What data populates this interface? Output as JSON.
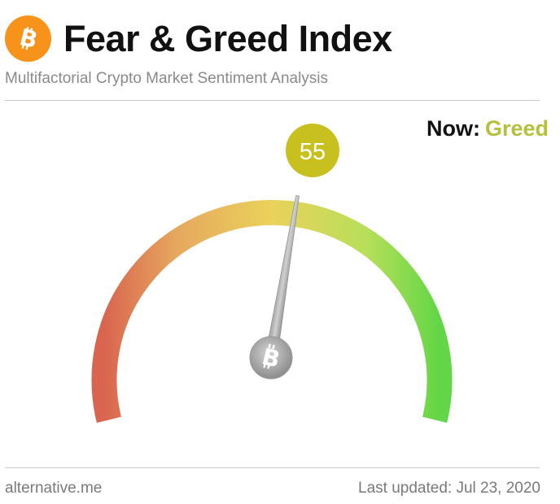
{
  "header": {
    "title": "Fear & Greed Index",
    "subtitle": "Multifactorial Crypto Market Sentiment Analysis",
    "logo_icon": "bitcoin-icon",
    "logo_color": "#f7931a"
  },
  "status": {
    "now_label": "Now:",
    "classification": "Greed",
    "classification_color": "#b5c13a"
  },
  "gauge": {
    "value": 55,
    "min": 0,
    "max": 100,
    "value_badge_color": "#c8c01e",
    "needle_hub_icon": "bitcoin-icon",
    "colors": {
      "fear": "#d9654f",
      "neutral": "#e9d05c",
      "greed": "#6fd64a"
    }
  },
  "footer": {
    "source": "alternative.me",
    "updated": "Last updated: Jul 23, 2020"
  }
}
